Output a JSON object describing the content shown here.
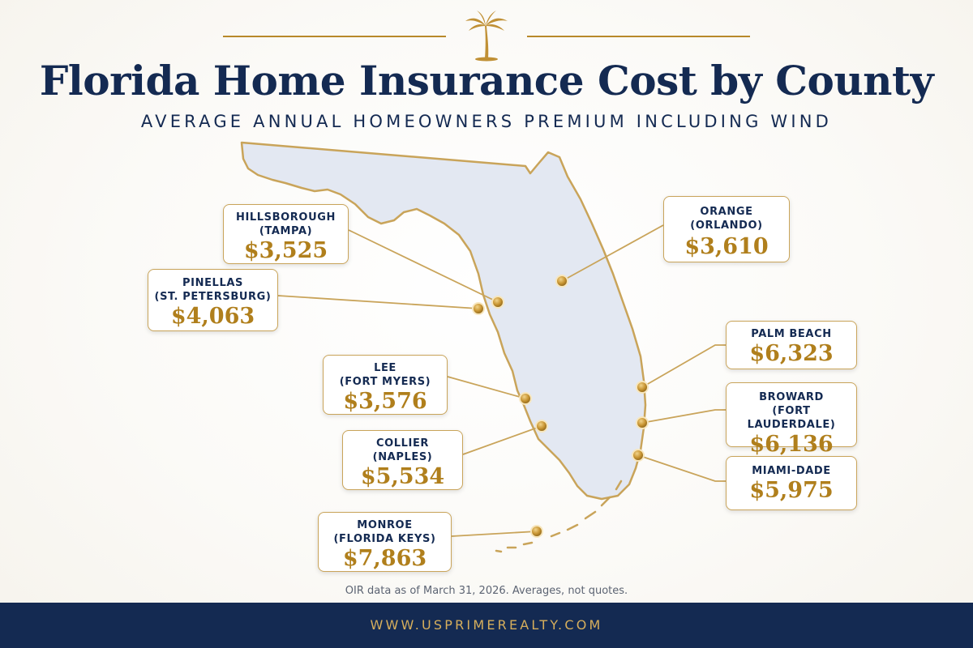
{
  "header": {
    "title": "Florida Home Insurance Cost by County",
    "subtitle": "AVERAGE ANNUAL HOMEOWNERS PREMIUM INCLUDING WIND"
  },
  "map": {
    "region": "Florida",
    "counties": [
      {
        "name": "HILLSBOROUGH",
        "city": "(TAMPA)",
        "premium": "$3,525"
      },
      {
        "name": "PINELLAS",
        "city": "(ST. PETERSBURG)",
        "premium": "$4,063"
      },
      {
        "name": "LEE",
        "city": "(FORT MYERS)",
        "premium": "$3,576"
      },
      {
        "name": "COLLIER",
        "city": "(NAPLES)",
        "premium": "$5,534"
      },
      {
        "name": "MONROE",
        "city": "(FLORIDA KEYS)",
        "premium": "$7,863"
      },
      {
        "name": "ORANGE",
        "city": "(ORLANDO)",
        "premium": "$3,610"
      },
      {
        "name": "PALM BEACH",
        "city": "",
        "premium": "$6,323"
      },
      {
        "name": "BROWARD",
        "city": "(FORT LAUDERDALE)",
        "premium": "$6,136"
      },
      {
        "name": "MIAMI-DADE",
        "city": "",
        "premium": "$5,975"
      }
    ]
  },
  "footnote": "OIR data as of March 31, 2026. Averages, not quotes.",
  "footer": {
    "url": "WWW.USPRIMEREALTY.COM"
  },
  "colors": {
    "navy": "#142a52",
    "gold": "#b8892a",
    "land": "#e3e8f2"
  },
  "icons": {
    "logo": "palm-tree-icon"
  }
}
